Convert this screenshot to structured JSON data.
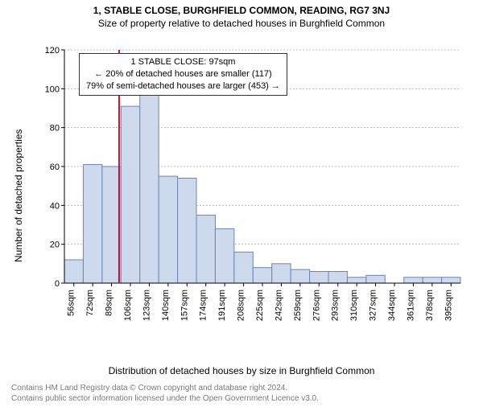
{
  "title_main": "1, STABLE CLOSE, BURGHFIELD COMMON, READING, RG7 3NJ",
  "title_sub": "Size of property relative to detached houses in Burghfield Common",
  "ylabel": "Number of detached properties",
  "xlabel": "Distribution of detached houses by size in Burghfield Common",
  "footer_line1": "Contains HM Land Registry data © Crown copyright and database right 2024.",
  "footer_line2": "Contains public sector information licensed under the Open Government Licence v3.0.",
  "info_line1": "1 STABLE CLOSE: 97sqm",
  "info_line2": "← 20% of detached houses are smaller (117)",
  "info_line3": "79% of semi-detached houses are larger (453) →",
  "chart": {
    "type": "histogram",
    "categories": [
      "56sqm",
      "72sqm",
      "89sqm",
      "106sqm",
      "123sqm",
      "140sqm",
      "157sqm",
      "174sqm",
      "191sqm",
      "208sqm",
      "225sqm",
      "242sqm",
      "259sqm",
      "276sqm",
      "293sqm",
      "310sqm",
      "327sqm",
      "344sqm",
      "361sqm",
      "378sqm",
      "395sqm"
    ],
    "values": [
      12,
      61,
      60,
      91,
      97,
      55,
      54,
      35,
      28,
      16,
      8,
      10,
      7,
      6,
      6,
      3,
      4,
      0,
      3,
      3,
      3
    ],
    "ylim": [
      0,
      120
    ],
    "ytick_step": 20,
    "bar_fill": "#cdd9ed",
    "bar_stroke": "#6d85b0",
    "grid_color": "#808080",
    "background_color": "#ffffff",
    "marker_line_color": "#c8102e",
    "marker_x_index": 2.4,
    "tick_font_size": 11,
    "title_fontsize": 12
  }
}
